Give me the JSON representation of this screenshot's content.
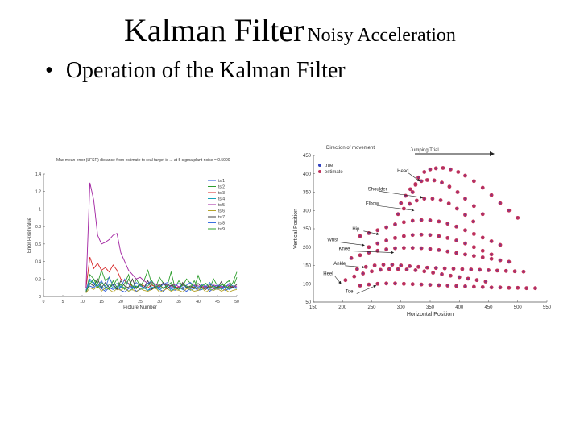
{
  "slide": {
    "title_main": "Kalman Filter",
    "title_sub": "Noisy Acceleration",
    "bullet_symbol": "•",
    "bullet_text": "Operation of the Kalman Filter"
  },
  "chart_data": [
    {
      "type": "line",
      "title": "Max mean error (LFSR) distance from estimate to real target is ... at 5 sigma plant noise = 0.5000",
      "xlabel": "Picture Number",
      "ylabel": "Error Pixel value",
      "xlim": [
        0,
        50
      ],
      "ylim": [
        0,
        1.4
      ],
      "xticks": [
        "0",
        "5",
        "10",
        "15",
        "20",
        "25",
        "30",
        "35",
        "40",
        "45",
        "50"
      ],
      "yticks": [
        "0",
        "0.2",
        "0.4",
        "0.6",
        "0.8",
        "1",
        "1.2",
        "1.4"
      ],
      "grid": false,
      "legend_position": "top-right",
      "x": [
        11,
        12,
        13,
        14,
        15,
        16,
        17,
        18,
        19,
        20,
        21,
        22,
        23,
        24,
        25,
        26,
        27,
        28,
        29,
        30,
        31,
        32,
        33,
        34,
        35,
        36,
        37,
        38,
        39,
        40,
        41,
        42,
        43,
        44,
        45,
        46,
        47,
        48,
        49,
        50
      ],
      "series": [
        {
          "name": "tsf1",
          "color": "#1f4fd8",
          "values": [
            0.08,
            0.12,
            0.1,
            0.15,
            0.09,
            0.06,
            0.1,
            0.08,
            0.12,
            0.07,
            0.05,
            0.09,
            0.11,
            0.06,
            0.08,
            0.1,
            0.07,
            0.09,
            0.12,
            0.08,
            0.06,
            0.1,
            0.09,
            0.07,
            0.11,
            0.08,
            0.06,
            0.09,
            0.1,
            0.07,
            0.08,
            0.11,
            0.06,
            0.09,
            0.08,
            0.1,
            0.07,
            0.09,
            0.12,
            0.1
          ]
        },
        {
          "name": "tsf2",
          "color": "#2e9e2e",
          "values": [
            0.05,
            0.25,
            0.2,
            0.15,
            0.3,
            0.18,
            0.22,
            0.12,
            0.2,
            0.1,
            0.15,
            0.25,
            0.08,
            0.2,
            0.12,
            0.18,
            0.3,
            0.14,
            0.1,
            0.22,
            0.15,
            0.12,
            0.28,
            0.1,
            0.18,
            0.12,
            0.2,
            0.15,
            0.1,
            0.24,
            0.12,
            0.15,
            0.1,
            0.2,
            0.12,
            0.08,
            0.15,
            0.18,
            0.1,
            0.22
          ]
        },
        {
          "name": "tsf3",
          "color": "#d62728",
          "values": [
            0.1,
            0.45,
            0.32,
            0.38,
            0.3,
            0.33,
            0.28,
            0.36,
            0.3,
            0.2,
            0.18,
            0.15,
            0.12,
            0.1,
            0.14,
            0.12,
            0.1,
            0.13,
            0.11,
            0.12,
            0.1,
            0.09,
            0.12,
            0.1,
            0.11,
            0.09,
            0.1,
            0.12,
            0.1,
            0.09,
            0.11,
            0.1,
            0.12,
            0.09,
            0.1,
            0.11,
            0.1,
            0.09,
            0.12,
            0.1
          ]
        },
        {
          "name": "tsf4",
          "color": "#17a2b8",
          "values": [
            0.06,
            0.18,
            0.15,
            0.1,
            0.12,
            0.08,
            0.14,
            0.1,
            0.08,
            0.12,
            0.1,
            0.06,
            0.09,
            0.12,
            0.08,
            0.1,
            0.07,
            0.11,
            0.09,
            0.08,
            0.1,
            0.12,
            0.07,
            0.09,
            0.1,
            0.08,
            0.11,
            0.07,
            0.09,
            0.1,
            0.08,
            0.12,
            0.09,
            0.07,
            0.1,
            0.09,
            0.11,
            0.08,
            0.1,
            0.09
          ]
        },
        {
          "name": "tsf5",
          "color": "#a020a0",
          "values": [
            0.1,
            1.3,
            1.1,
            0.7,
            0.6,
            0.62,
            0.65,
            0.7,
            0.72,
            0.5,
            0.4,
            0.3,
            0.25,
            0.2,
            0.22,
            0.18,
            0.15,
            0.16,
            0.14,
            0.12,
            0.15,
            0.13,
            0.12,
            0.14,
            0.11,
            0.13,
            0.12,
            0.1,
            0.13,
            0.12,
            0.11,
            0.12,
            0.1,
            0.13,
            0.12,
            0.11,
            0.12,
            0.13,
            0.1,
            0.12
          ]
        },
        {
          "name": "tsf6",
          "color": "#b5a32a",
          "values": [
            0.04,
            0.1,
            0.08,
            0.12,
            0.06,
            0.1,
            0.08,
            0.05,
            0.09,
            0.07,
            0.1,
            0.06,
            0.08,
            0.05,
            0.09,
            0.07,
            0.06,
            0.08,
            0.1,
            0.05,
            0.07,
            0.09,
            0.06,
            0.08,
            0.07,
            0.05,
            0.09,
            0.08,
            0.06,
            0.07,
            0.1,
            0.05,
            0.08,
            0.07,
            0.09,
            0.06,
            0.08,
            0.05,
            0.07,
            0.08
          ]
        },
        {
          "name": "tsf7",
          "color": "#404040",
          "values": [
            0.05,
            0.15,
            0.12,
            0.2,
            0.1,
            0.16,
            0.1,
            0.14,
            0.08,
            0.18,
            0.12,
            0.1,
            0.2,
            0.09,
            0.14,
            0.1,
            0.18,
            0.08,
            0.12,
            0.1,
            0.16,
            0.09,
            0.13,
            0.11,
            0.08,
            0.16,
            0.1,
            0.12,
            0.09,
            0.15,
            0.1,
            0.08,
            0.14,
            0.12,
            0.1,
            0.17,
            0.09,
            0.12,
            0.1,
            0.14
          ]
        },
        {
          "name": "tsf8",
          "color": "#3b6fe0",
          "values": [
            0.07,
            0.2,
            0.16,
            0.12,
            0.18,
            0.1,
            0.22,
            0.12,
            0.15,
            0.1,
            0.2,
            0.14,
            0.1,
            0.16,
            0.12,
            0.1,
            0.15,
            0.18,
            0.12,
            0.1,
            0.14,
            0.16,
            0.1,
            0.12,
            0.15,
            0.1,
            0.13,
            0.16,
            0.12,
            0.1,
            0.14,
            0.11,
            0.16,
            0.1,
            0.13,
            0.12,
            0.1,
            0.15,
            0.12,
            0.1
          ]
        },
        {
          "name": "tsf9",
          "color": "#2ea02e",
          "values": [
            0.06,
            0.14,
            0.2,
            0.1,
            0.16,
            0.12,
            0.08,
            0.18,
            0.1,
            0.14,
            0.08,
            0.2,
            0.12,
            0.1,
            0.15,
            0.09,
            0.12,
            0.18,
            0.1,
            0.14,
            0.09,
            0.12,
            0.16,
            0.1,
            0.08,
            0.14,
            0.12,
            0.1,
            0.18,
            0.09,
            0.12,
            0.15,
            0.1,
            0.12,
            0.09,
            0.14,
            0.12,
            0.1,
            0.16,
            0.28
          ]
        }
      ]
    },
    {
      "type": "scatter",
      "title": "Jumping Trial",
      "direction_label": "Direction of movement",
      "xlabel": "Horizontal Position",
      "ylabel": "Vertical Position",
      "xlim": [
        150,
        550
      ],
      "ylim": [
        50,
        450
      ],
      "xticks": [
        "150",
        "200",
        "250",
        "300",
        "350",
        "400",
        "450",
        "500",
        "550"
      ],
      "yticks": [
        "50",
        "100",
        "150",
        "200",
        "250",
        "300",
        "350",
        "400",
        "450"
      ],
      "grid": false,
      "legend_position": "top-left",
      "legend": [
        {
          "name": "true",
          "color": "#3040c0"
        },
        {
          "name": "estimate",
          "color": "#c0305a"
        }
      ],
      "annotations": [
        "Head",
        "Shoulder",
        "Elbow",
        "Hip",
        "Wrist",
        "Knee",
        "Ankle",
        "Heel",
        "Toe"
      ],
      "annotation_targets": [
        {
          "label": "Head",
          "x": 335,
          "y": 380
        },
        {
          "label": "Shoulder",
          "x": 340,
          "y": 335
        },
        {
          "label": "Elbow",
          "x": 325,
          "y": 300
        },
        {
          "label": "Hip",
          "x": 265,
          "y": 235
        },
        {
          "label": "Wrist",
          "x": 240,
          "y": 205
        },
        {
          "label": "Knee",
          "x": 290,
          "y": 185
        },
        {
          "label": "Ankle",
          "x": 240,
          "y": 145
        },
        {
          "label": "Heel",
          "x": 200,
          "y": 100
        },
        {
          "label": "Toe",
          "x": 260,
          "y": 95
        }
      ],
      "series": [
        {
          "name": "Head",
          "x": [
            320,
            325,
            330,
            340,
            350,
            360,
            372,
            385,
            398,
            410,
            425,
            440,
            455,
            470,
            485,
            500
          ],
          "y": [
            350,
            370,
            390,
            405,
            412,
            415,
            416,
            412,
            405,
            395,
            380,
            362,
            342,
            320,
            300,
            280
          ]
        },
        {
          "name": "Shoulder",
          "x": [
            300,
            308,
            316,
            325,
            335,
            345,
            357,
            370,
            383,
            397,
            410,
            425,
            440
          ],
          "y": [
            320,
            340,
            358,
            372,
            380,
            383,
            382,
            376,
            365,
            350,
            332,
            312,
            290
          ]
        },
        {
          "name": "Elbow",
          "x": [
            295,
            305,
            315,
            327,
            340,
            354,
            368,
            382,
            396,
            410,
            424
          ],
          "y": [
            290,
            305,
            318,
            327,
            332,
            332,
            328,
            319,
            305,
            288,
            270
          ]
        },
        {
          "name": "Hip",
          "x": [
            230,
            245,
            260,
            275,
            290,
            305,
            320,
            335,
            350,
            365,
            380,
            395,
            410,
            425,
            440,
            455,
            470
          ],
          "y": [
            230,
            238,
            246,
            254,
            262,
            268,
            272,
            274,
            273,
            270,
            264,
            256,
            246,
            236,
            226,
            216,
            206
          ]
        },
        {
          "name": "Wrist",
          "x": [
            245,
            260,
            275,
            290,
            305,
            320,
            335,
            350,
            365,
            380,
            395,
            410,
            425,
            440,
            455
          ],
          "y": [
            200,
            210,
            218,
            225,
            230,
            233,
            234,
            233,
            230,
            225,
            218,
            210,
            200,
            190,
            180
          ]
        },
        {
          "name": "Knee",
          "x": [
            215,
            230,
            245,
            260,
            275,
            290,
            305,
            320,
            335,
            350,
            365,
            380,
            395,
            410,
            425,
            440,
            455,
            470,
            485
          ],
          "y": [
            170,
            178,
            185,
            190,
            194,
            197,
            198,
            198,
            197,
            195,
            192,
            188,
            184,
            180,
            176,
            172,
            168,
            164,
            160
          ]
        },
        {
          "name": "Ankle",
          "x": [
            225,
            240,
            255,
            270,
            285,
            300,
            315,
            330,
            345,
            360,
            375,
            390,
            405,
            420,
            435,
            450,
            465,
            480,
            495,
            510
          ],
          "y": [
            140,
            146,
            150,
            152,
            152,
            150,
            148,
            146,
            144,
            143,
            142,
            141,
            140,
            139,
            138,
            137,
            136,
            135,
            134,
            133
          ]
        },
        {
          "name": "Heel",
          "x": [
            205,
            220,
            235,
            250,
            265,
            280,
            295,
            310,
            325,
            340,
            355,
            370,
            385,
            400,
            415,
            430,
            445
          ],
          "y": [
            110,
            120,
            128,
            134,
            138,
            140,
            140,
            139,
            137,
            134,
            130,
            126,
            122,
            118,
            114,
            110,
            106
          ]
        },
        {
          "name": "Toe",
          "x": [
            230,
            245,
            260,
            275,
            290,
            305,
            320,
            335,
            350,
            365,
            380,
            395,
            410,
            425,
            440,
            455,
            470,
            485,
            500,
            515,
            530
          ],
          "y": [
            95,
            98,
            100,
            101,
            101,
            100,
            99,
            98,
            97,
            96,
            95,
            94,
            93,
            92,
            91,
            90,
            90,
            89,
            89,
            88,
            88
          ]
        }
      ]
    }
  ]
}
